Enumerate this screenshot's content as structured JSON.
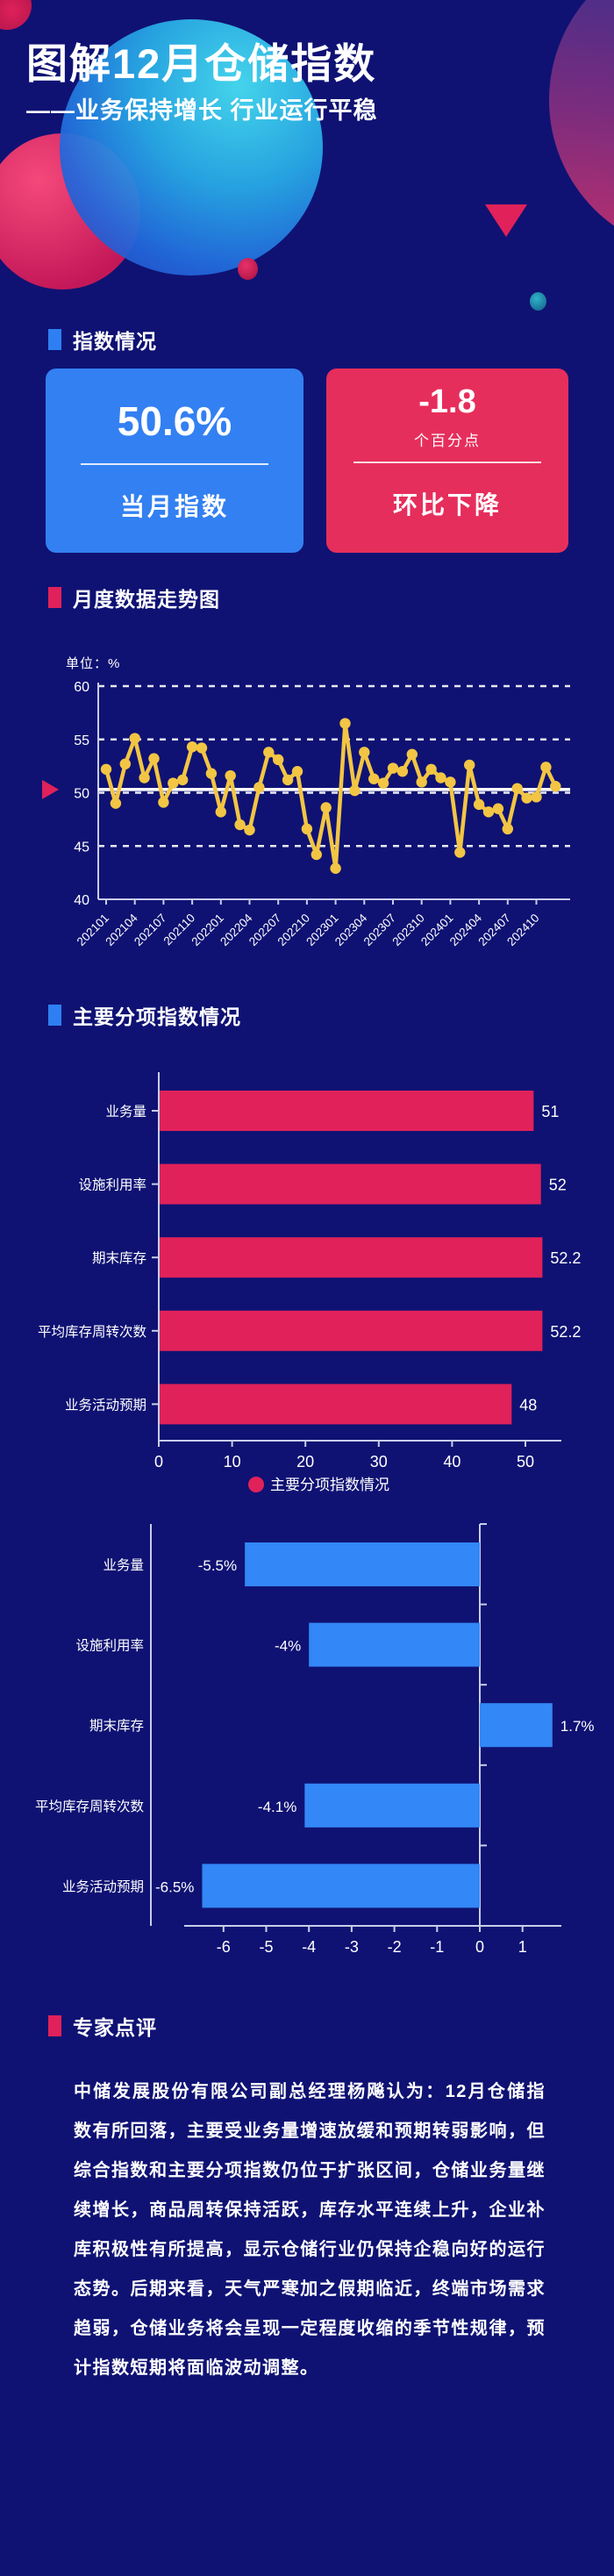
{
  "colors": {
    "background": "#0F1273",
    "accent_blue": "#2E7FF2",
    "accent_crimson": "#E0215A",
    "card_blue": "#3380F2",
    "card_red": "#E62E5C",
    "line_gold": "#F2C544",
    "bar_red": "#E0215A",
    "bar_blue": "#3387F6"
  },
  "header": {
    "title": "图解12月仓储指数",
    "subtitle": "——业务保持增长 行业运行平稳"
  },
  "section_headers": {
    "index_status": "指数情况",
    "monthly_trend": "月度数据走势图",
    "sub_indices": "主要分项指数情况",
    "expert_review": "专家点评"
  },
  "index_cards": {
    "current": {
      "value": "50.6%",
      "label": "当月指数"
    },
    "change": {
      "value": "-1.8",
      "unit": "个百分点",
      "label": "环比下降"
    }
  },
  "chart_data": [
    {
      "type": "line",
      "title": "月度数据走势图",
      "unit_label": "单位：%",
      "ylim": [
        40,
        60
      ],
      "yticks": [
        40,
        45,
        50,
        55,
        60
      ],
      "grid": "horizontal dashed",
      "reference_line": 50.3,
      "xtick_every": 3,
      "x": [
        "202101",
        "202102",
        "202103",
        "202104",
        "202105",
        "202106",
        "202107",
        "202108",
        "202109",
        "202110",
        "202111",
        "202112",
        "202201",
        "202202",
        "202203",
        "202204",
        "202205",
        "202206",
        "202207",
        "202208",
        "202209",
        "202210",
        "202211",
        "202212",
        "202301",
        "202302",
        "202303",
        "202304",
        "202305",
        "202306",
        "202307",
        "202308",
        "202309",
        "202310",
        "202311",
        "202312",
        "202401",
        "202402",
        "202403",
        "202404",
        "202405",
        "202406",
        "202407",
        "202408",
        "202409",
        "202410",
        "202411",
        "202412"
      ],
      "values": [
        52.2,
        49.0,
        52.7,
        55.1,
        51.4,
        53.2,
        49.1,
        50.9,
        51.2,
        54.3,
        54.2,
        51.8,
        48.2,
        51.6,
        47.0,
        46.5,
        50.5,
        53.8,
        53.1,
        51.2,
        52.0,
        46.6,
        44.2,
        48.6,
        42.9,
        56.5,
        50.2,
        53.8,
        51.3,
        50.9,
        52.3,
        52.0,
        53.6,
        51.0,
        52.2,
        51.4,
        51.0,
        44.4,
        52.6,
        48.9,
        48.2,
        48.5,
        46.6,
        50.4,
        49.5,
        49.6,
        52.4,
        50.6
      ]
    },
    {
      "type": "bar",
      "orientation": "horizontal",
      "title": "主要分项指数情况",
      "categories": [
        "业务量",
        "设施利用率",
        "期末库存",
        "平均库存周转次数",
        "业务活动预期"
      ],
      "values": [
        51,
        52,
        52.2,
        52.2,
        48
      ],
      "value_labels": [
        "51",
        "52",
        "52.2",
        "52.2",
        "48"
      ],
      "xticks": [
        0,
        10,
        20,
        30,
        40,
        50
      ],
      "xlim": [
        0,
        55
      ],
      "legend": {
        "label": "主要分项指数情况",
        "position": "bottom"
      }
    },
    {
      "type": "bar",
      "orientation": "horizontal",
      "title": "",
      "categories": [
        "业务量",
        "设施利用率",
        "期末库存",
        "平均库存周转次数",
        "业务活动预期"
      ],
      "values": [
        -5.5,
        -4,
        1.7,
        -4.1,
        -6.5
      ],
      "value_labels": [
        "-5.5%",
        "-4%",
        "1.7%",
        "-4.1%",
        "-6.5%"
      ],
      "xticks": [
        -6,
        -5,
        -4,
        -3,
        -2,
        -1,
        0,
        1
      ],
      "xlim": [
        -7.7,
        1.9
      ]
    }
  ],
  "expert_review": {
    "paragraph": "中储发展股份有限公司副总经理杨飚认为：12月仓储指数有所回落，主要受业务量增速放缓和预期转弱影响，但综合指数和主要分项指数仍位于扩张区间，仓储业务量继续增长，商品周转保持活跃，库存水平连续上升，企业补库积极性有所提高，显示仓储行业仍保持企稳向好的运行态势。后期来看，天气严寒加之假期临近，终端市场需求趋弱，仓储业务将会呈现一定程度收缩的季节性规律，预计指数短期将面临波动调整。"
  }
}
